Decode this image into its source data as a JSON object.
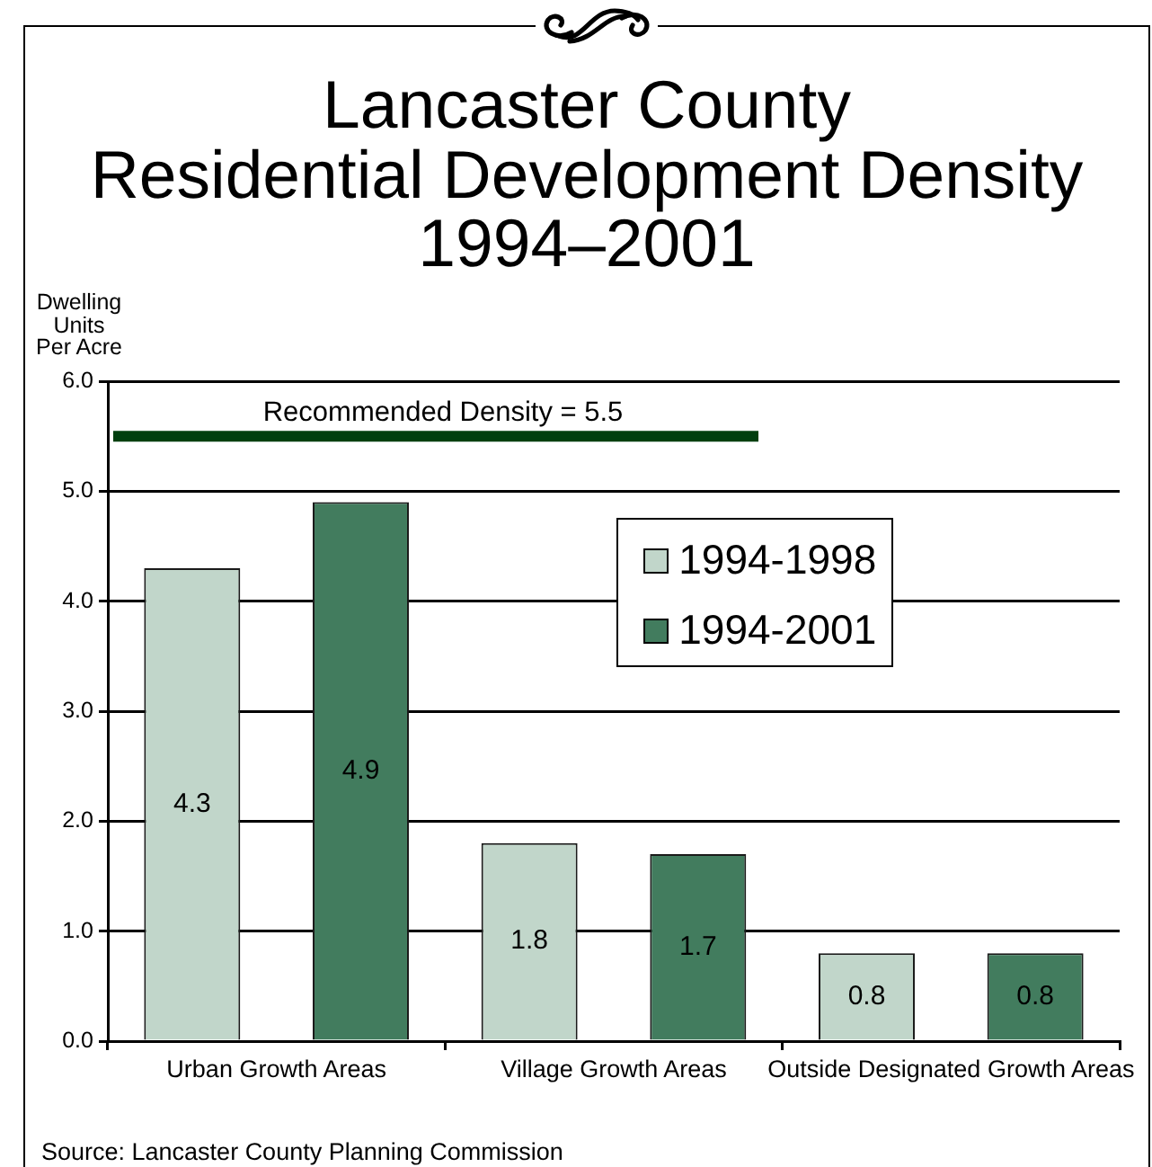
{
  "chart_data": {
    "type": "bar",
    "title": "Lancaster County\nResidential Development Density\n1994–2001",
    "ylabel": "Dwelling\nUnits\nPer Acre",
    "categories": [
      "Urban Growth Areas",
      "Village Growth Areas",
      "Outside Designated Growth Areas"
    ],
    "series": [
      {
        "name": "1994-1998",
        "color": "#c1d6ca",
        "values": [
          4.3,
          1.8,
          0.8
        ]
      },
      {
        "name": "1994-2001",
        "color": "#427c5e",
        "values": [
          4.9,
          1.7,
          0.8
        ]
      }
    ],
    "ylim": [
      0,
      6
    ],
    "yticks": [
      {
        "value": 0,
        "label": "0.0"
      },
      {
        "value": 1,
        "label": "1.0"
      },
      {
        "value": 2,
        "label": "2.0"
      },
      {
        "value": 3,
        "label": "3.0"
      },
      {
        "value": 4,
        "label": "4.0"
      },
      {
        "value": 5,
        "label": "5.0"
      },
      {
        "value": 6,
        "label": "6.0"
      }
    ],
    "grid": "y",
    "legend": "top right",
    "data_labels": true,
    "ref_lines": [
      {
        "axis": "y",
        "value": 5.5,
        "label": "Recommended Density = 5.5",
        "color": "#003f0f"
      }
    ],
    "annotations": [
      "Source: Lancaster County Planning Commission"
    ]
  }
}
